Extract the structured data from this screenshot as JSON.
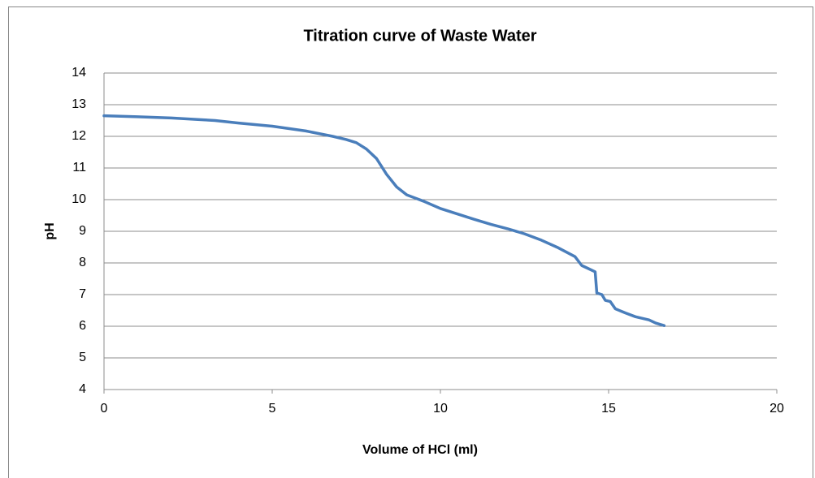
{
  "chart_data": {
    "type": "line",
    "title": "Titration curve of Waste Water",
    "x_label": "Volume of HCl (ml)",
    "y_label": "pH",
    "x": [
      0,
      1,
      2,
      3,
      3.3,
      4,
      5,
      6,
      6.8,
      7.2,
      7.5,
      7.8,
      8.1,
      8.4,
      8.7,
      9.0,
      9.5,
      10,
      10.5,
      11,
      11.5,
      12,
      12.5,
      13,
      13.5,
      14,
      14.2,
      14.4,
      14.6,
      14.65,
      14.8,
      14.9,
      15.05,
      15.2,
      15.5,
      15.8,
      16.2,
      16.4,
      16.65
    ],
    "series": [
      {
        "name": "pH",
        "color": "#4a7ebb",
        "values": [
          12.65,
          12.62,
          12.58,
          12.52,
          12.5,
          12.42,
          12.32,
          12.17,
          12.0,
          11.9,
          11.8,
          11.6,
          11.3,
          10.8,
          10.4,
          10.15,
          9.95,
          9.72,
          9.55,
          9.38,
          9.22,
          9.08,
          8.92,
          8.72,
          8.48,
          8.2,
          7.92,
          7.82,
          7.72,
          7.05,
          7.0,
          6.82,
          6.78,
          6.55,
          6.42,
          6.3,
          6.2,
          6.1,
          6.02
        ]
      }
    ],
    "xlim": [
      0,
      20
    ],
    "xticks": [
      0,
      5,
      10,
      15,
      20
    ],
    "ylim": [
      4,
      14
    ],
    "yticks": [
      4,
      5,
      6,
      7,
      8,
      9,
      10,
      11,
      12,
      13,
      14
    ],
    "grid": true,
    "legend": false
  }
}
